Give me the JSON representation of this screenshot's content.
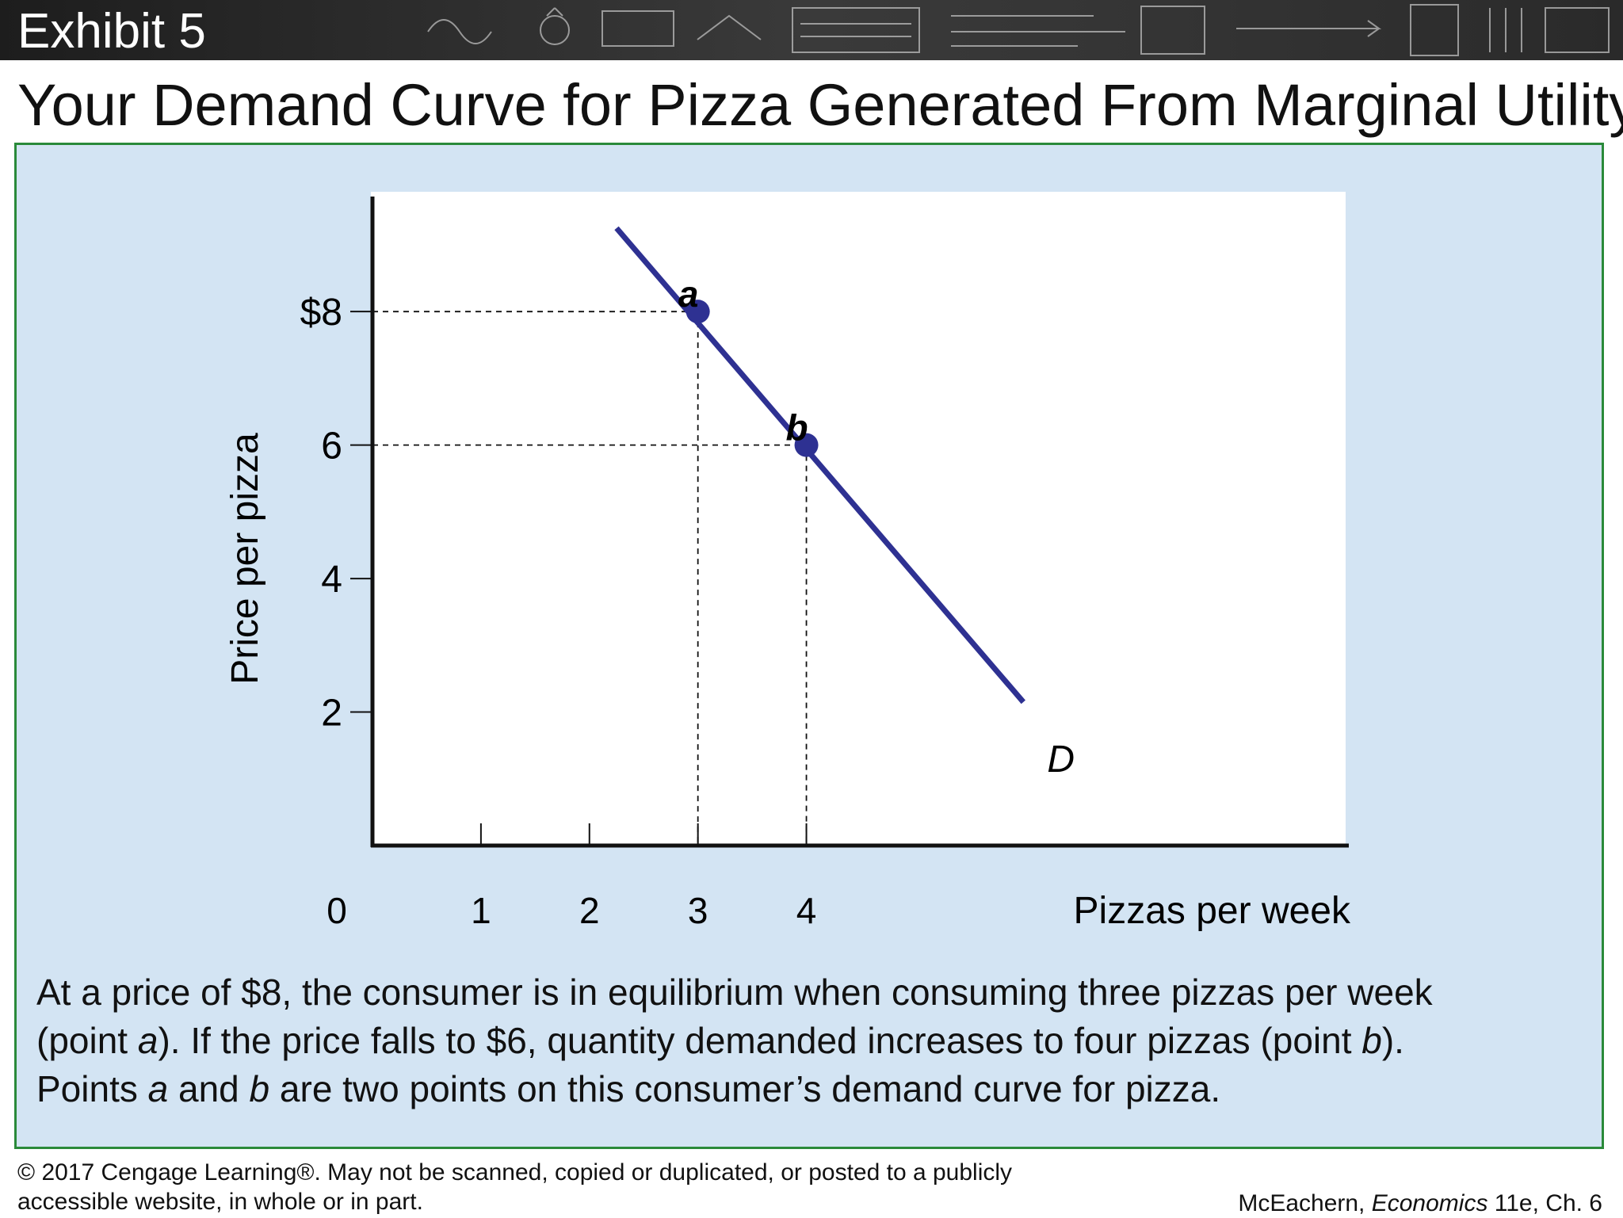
{
  "header": {
    "exhibit": "Exhibit 5",
    "title": "Your Demand Curve for Pizza Generated From Marginal Utility"
  },
  "chart_data": {
    "type": "line",
    "ylabel": "Price per pizza",
    "xlabel": "Pizzas per week",
    "origin_label": "0",
    "x_ticks": [
      1,
      2,
      3,
      4
    ],
    "x_tick_labels": [
      "1",
      "2",
      "3",
      "4"
    ],
    "y_ticks": [
      2,
      4,
      6,
      8
    ],
    "y_tick_labels": [
      "2",
      "4",
      "6",
      "$8"
    ],
    "xlim": [
      0,
      9
    ],
    "ylim": [
      0,
      9.7
    ],
    "series": [
      {
        "name": "D",
        "x": [
          2.25,
          6.0
        ],
        "y": [
          9.25,
          2.15
        ]
      }
    ],
    "points": [
      {
        "label": "a",
        "x": 3,
        "y": 8
      },
      {
        "label": "b",
        "x": 4,
        "y": 6
      }
    ],
    "grid": false,
    "colors": {
      "curve": "#2e3192",
      "axis": "#111111",
      "plot_bg": "#ffffff"
    }
  },
  "caption": {
    "line1": "At a price of $8, the consumer is in equilibrium when consuming three pizzas per week",
    "line2_pre": "(point ",
    "line2_a": "a",
    "line2_mid": "). If the price falls to $6, quantity demanded increases to four pizzas (point ",
    "line2_b": "b",
    "line2_post": ").",
    "line3_pre": "Points ",
    "line3_a": "a",
    "line3_mid": " and ",
    "line3_b": "b",
    "line3_post": " are two points on this consumer’s demand curve for pizza."
  },
  "footer": {
    "copyright_line1": "© 2017 Cengage Learning®. May not be scanned, copied or duplicated, or posted to a publicly",
    "copyright_line2": "accessible website, in whole or in part.",
    "source_pre": "McEachern, ",
    "source_book": "Economics",
    "source_post": " 11e, Ch. 6"
  }
}
